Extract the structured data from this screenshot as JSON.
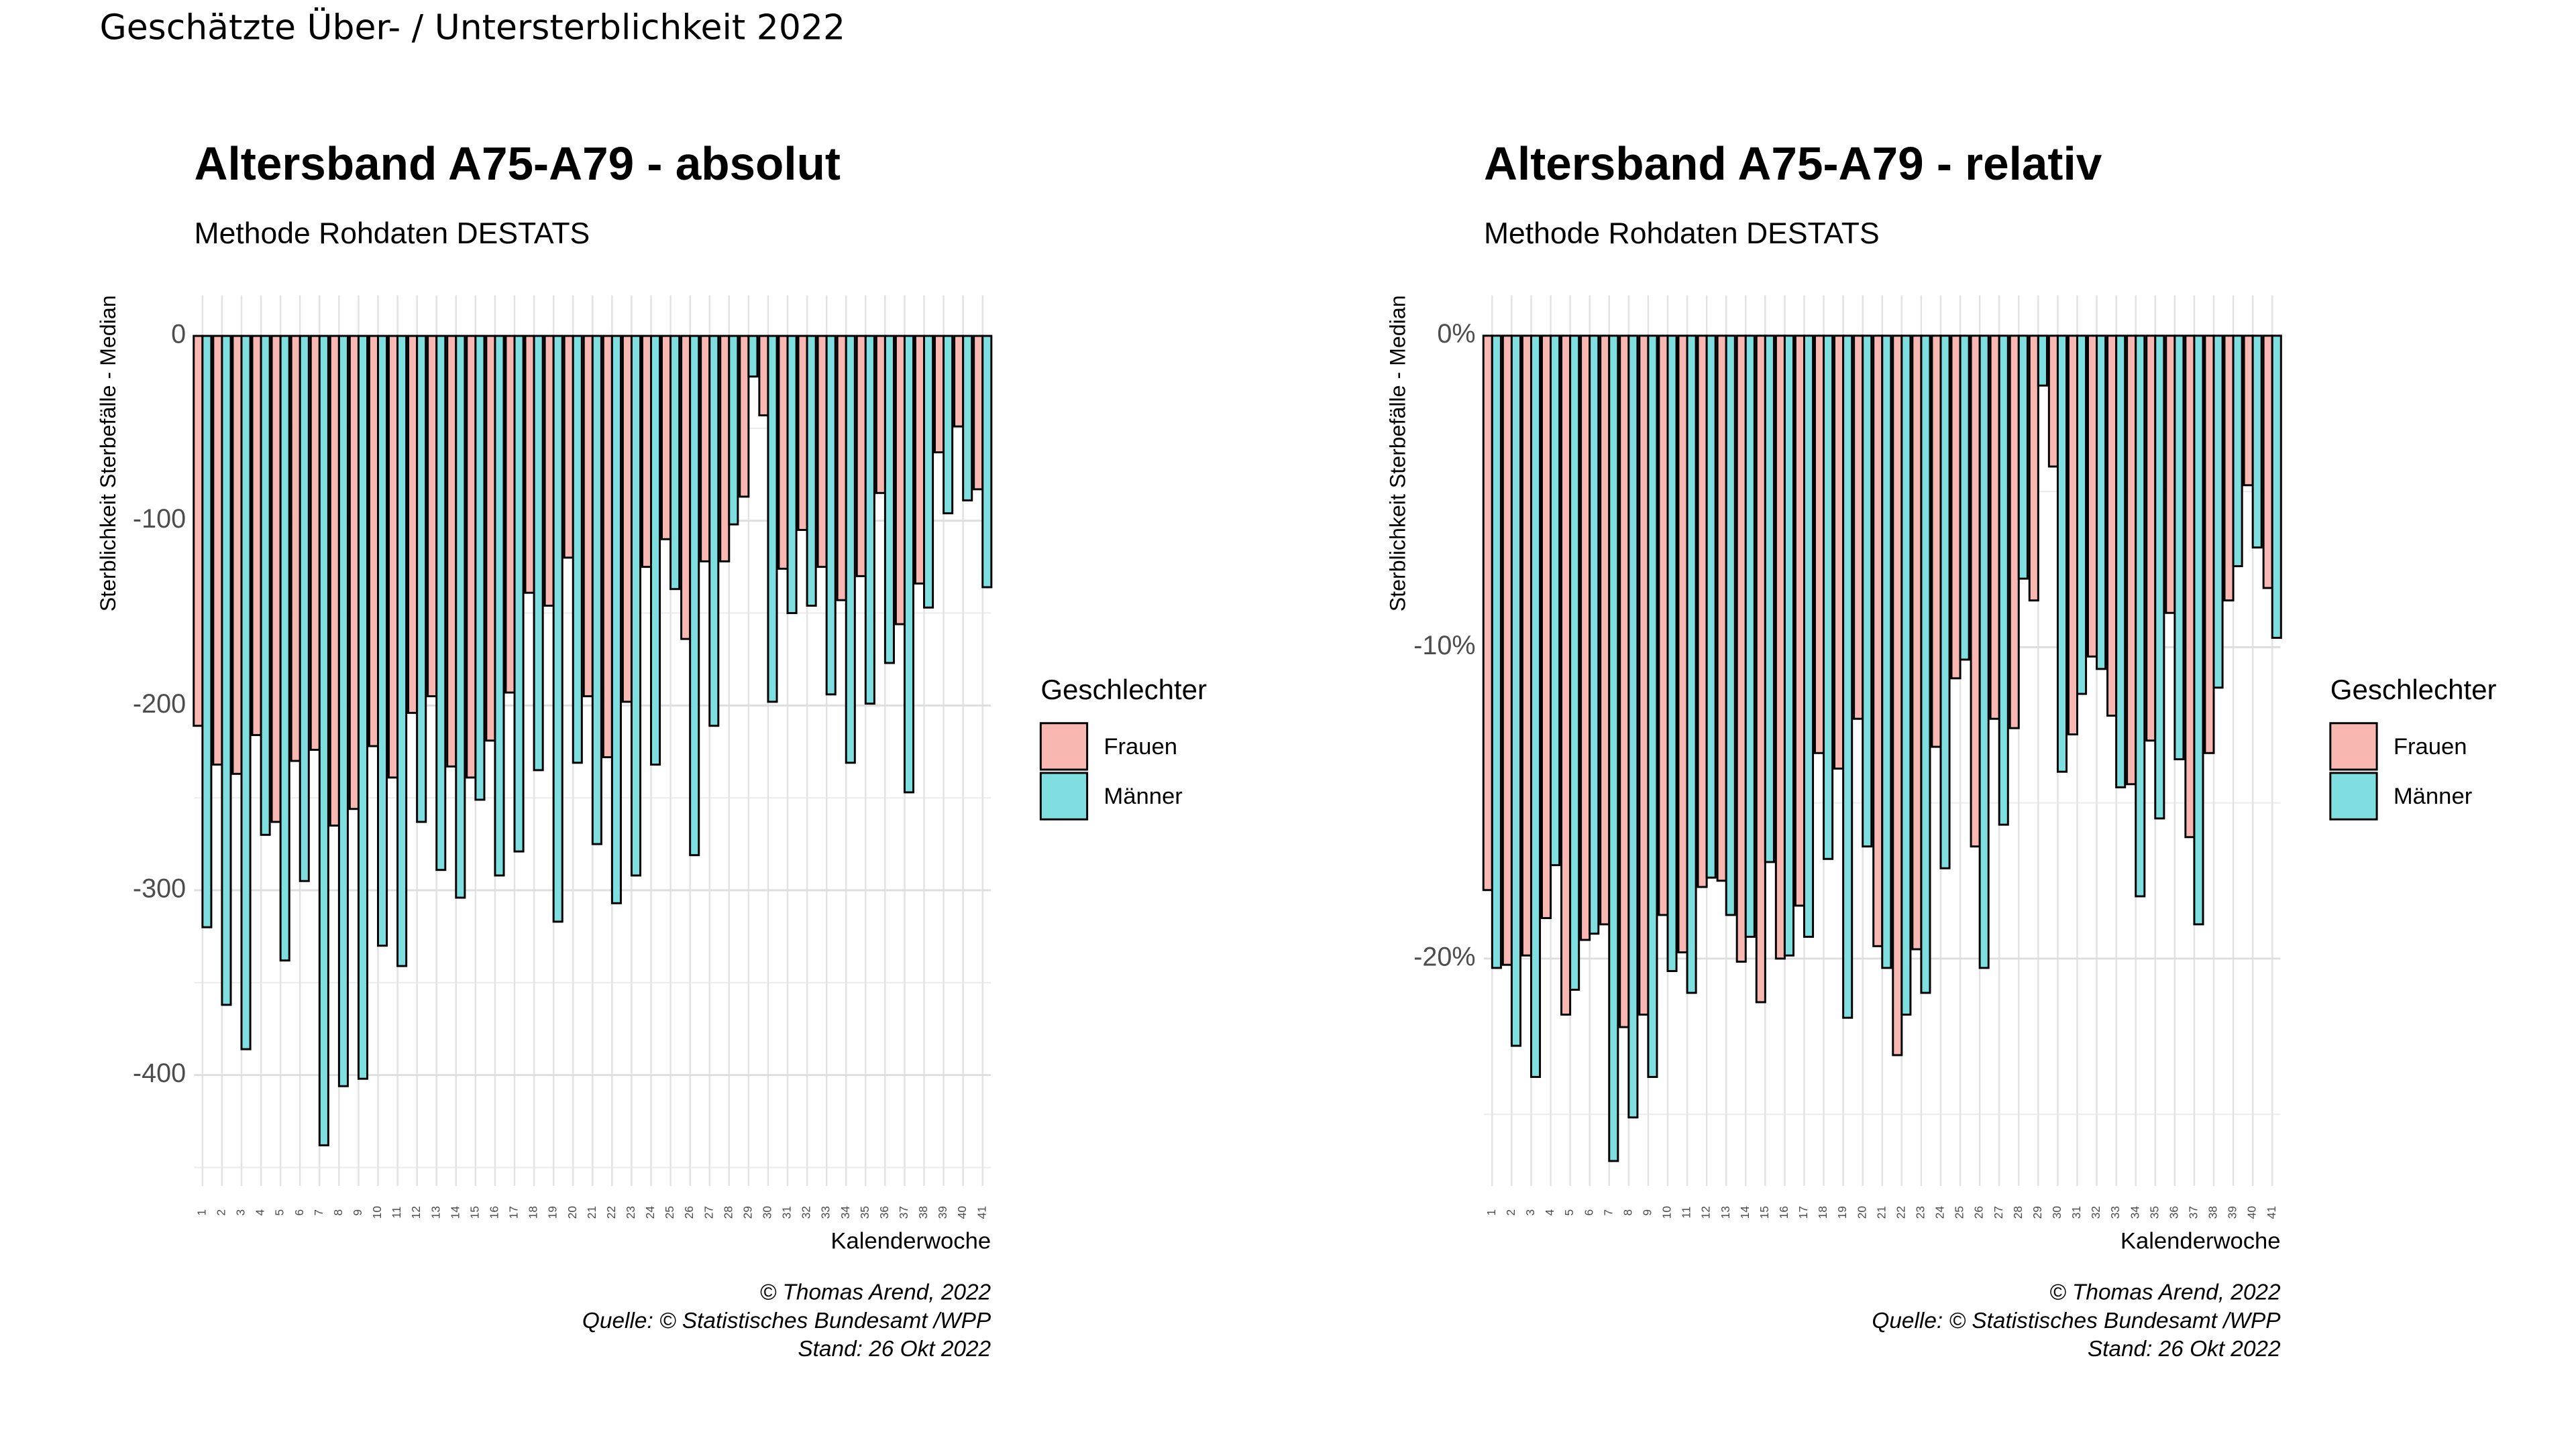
{
  "title": "Geschätzte Über- / Untersterblichkeit 2022",
  "chart_data": [
    {
      "type": "bar",
      "title": "Altersband A75-A79 - absolut",
      "subtitle": "Methode Rohdaten DESTATS",
      "y_label": "Sterblichkeit Sterbefälle - Median",
      "x_label": "Kalenderwoche",
      "legend_title": "Geschlechter",
      "caption": [
        "© Thomas Arend, 2022",
        "Quelle: © Statistisches Bundesamt /WPP",
        "Stand: 26 Okt 2022"
      ],
      "categories": [
        "1",
        "2",
        "3",
        "4",
        "5",
        "6",
        "7",
        "8",
        "9",
        "10",
        "11",
        "12",
        "13",
        "14",
        "15",
        "16",
        "17",
        "18",
        "19",
        "20",
        "21",
        "22",
        "23",
        "24",
        "25",
        "26",
        "27",
        "28",
        "29",
        "30",
        "31",
        "32",
        "33",
        "34",
        "35",
        "36",
        "37",
        "38",
        "39",
        "40",
        "41"
      ],
      "series": [
        {
          "name": "Frauen",
          "color": "#f8b7b1",
          "values": [
            -211,
            -232,
            -237,
            -216,
            -263,
            -230,
            -224,
            -265,
            -256,
            -222,
            -239,
            -204,
            -195,
            -233,
            -239,
            -219,
            -193,
            -139,
            -146,
            -120,
            -195,
            -228,
            -198,
            -125,
            -110,
            -164,
            -122,
            -122,
            -87,
            -43,
            -126,
            -105,
            -125,
            -143,
            -130,
            -85,
            -156,
            -134,
            -63,
            -49,
            -83
          ]
        },
        {
          "name": "Männer",
          "color": "#7fdfe0",
          "values": [
            -320,
            -362,
            -386,
            -270,
            -338,
            -295,
            -438,
            -406,
            -402,
            -330,
            -341,
            -263,
            -289,
            -304,
            -251,
            -292,
            -279,
            -235,
            -317,
            -231,
            -275,
            -307,
            -292,
            -232,
            -137,
            -281,
            -211,
            -102,
            -22,
            -198,
            -150,
            -146,
            -194,
            -231,
            -199,
            -177,
            -247,
            -147,
            -96,
            -89,
            -136
          ]
        }
      ],
      "ylim": [
        -460,
        22
      ],
      "yticks": [
        -400,
        -300,
        -200,
        -100,
        0
      ],
      "y_minor_ticks": [
        -450,
        -350,
        -250,
        -150,
        -50
      ],
      "grid": true
    },
    {
      "type": "bar",
      "title": "Altersband A75-A79 - relativ",
      "subtitle": "Methode Rohdaten DESTATS",
      "y_label": "Sterblichkeit Sterbefälle - Median",
      "x_label": "Kalenderwoche",
      "legend_title": "Geschlechter",
      "caption": [
        "© Thomas Arend, 2022",
        "Quelle: © Statistisches Bundesamt /WPP",
        "Stand: 26 Okt 2022"
      ],
      "categories": [
        "1",
        "2",
        "3",
        "4",
        "5",
        "6",
        "7",
        "8",
        "9",
        "10",
        "11",
        "12",
        "13",
        "14",
        "15",
        "16",
        "17",
        "18",
        "19",
        "20",
        "21",
        "22",
        "23",
        "24",
        "25",
        "26",
        "27",
        "28",
        "29",
        "30",
        "31",
        "32",
        "33",
        "34",
        "35",
        "36",
        "37",
        "38",
        "39",
        "40",
        "41"
      ],
      "series": [
        {
          "name": "Frauen",
          "color": "#f8b7b1",
          "values": [
            -17.8,
            -20.2,
            -19.9,
            -18.7,
            -21.8,
            -19.4,
            -18.9,
            -22.2,
            -21.8,
            -18.6,
            -19.8,
            -17.7,
            -17.5,
            -20.1,
            -21.4,
            -20.0,
            -18.3,
            -13.4,
            -13.9,
            -12.3,
            -19.6,
            -23.1,
            -19.7,
            -13.2,
            -11.0,
            -16.4,
            -12.3,
            -12.6,
            -8.5,
            -4.2,
            -12.8,
            -10.3,
            -12.2,
            -14.4,
            -13.0,
            -8.9,
            -16.1,
            -13.4,
            -8.5,
            -4.8,
            -8.1
          ]
        },
        {
          "name": "Männer",
          "color": "#7fdfe0",
          "values": [
            -20.3,
            -22.8,
            -23.8,
            -17.0,
            -21.0,
            -19.2,
            -26.5,
            -25.1,
            -23.8,
            -20.4,
            -21.1,
            -17.4,
            -18.6,
            -19.3,
            -16.9,
            -19.9,
            -19.3,
            -16.8,
            -21.9,
            -16.4,
            -20.3,
            -21.8,
            -21.1,
            -17.1,
            -10.4,
            -20.3,
            -15.7,
            -7.8,
            -1.6,
            -14.0,
            -11.5,
            -10.7,
            -14.5,
            -18.0,
            -15.5,
            -13.6,
            -18.9,
            -11.3,
            -7.4,
            -6.8,
            -9.7
          ]
        }
      ],
      "ylim": [
        -27.3,
        1.3
      ],
      "yticks": [
        {
          "value": -20,
          "label": "-20%"
        },
        {
          "value": -10,
          "label": "-10%"
        },
        {
          "value": 0,
          "label": "0%"
        }
      ],
      "y_minor_ticks": [
        -25,
        -15,
        -5
      ],
      "grid": true
    }
  ]
}
